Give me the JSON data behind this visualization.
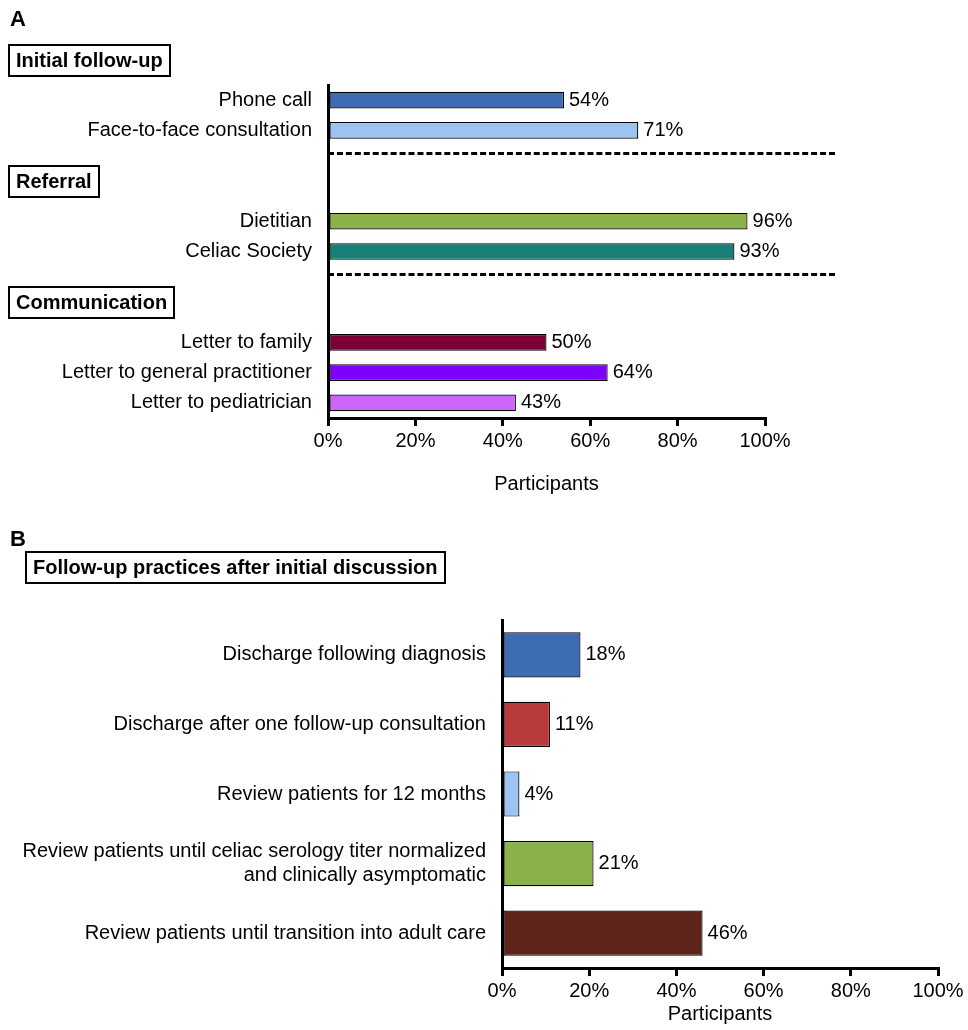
{
  "chart_data": [
    {
      "type": "bar",
      "orientation": "horizontal",
      "categories": [
        "Phone call",
        "Face-to-face consultation",
        null,
        null,
        "Dietitian",
        "Celiac Society",
        null,
        null,
        "Letter to family",
        "Letter to general practitioner",
        "Letter to pediatrician"
      ],
      "values": [
        54,
        71,
        null,
        null,
        96,
        93,
        null,
        null,
        50,
        64,
        43
      ],
      "colors": [
        "#3e6cb2",
        "#9dc3f0",
        "#ffffff",
        "#ffffff",
        "#8cb04a",
        "#198079",
        "#ffffff",
        "#ffffff",
        "#7c0036",
        "#8000ff",
        "#cc66ff"
      ],
      "value_labels": [
        "54%",
        "71%",
        null,
        null,
        "96%",
        "93%",
        null,
        null,
        "50%",
        "64%",
        "43%"
      ],
      "xlim": [
        0,
        100
      ],
      "xticks": [
        {
          "value": 0,
          "label": "0%"
        },
        {
          "value": 20,
          "label": "20%"
        },
        {
          "value": 40,
          "label": "40%"
        },
        {
          "value": 60,
          "label": "60%"
        },
        {
          "value": 80,
          "label": "80%"
        },
        {
          "value": 100,
          "label": "100%"
        }
      ],
      "xlabel": "Participants",
      "annotations": [
        "A",
        "Initial follow-up",
        "Referral",
        "Communication"
      ]
    },
    {
      "type": "bar",
      "orientation": "horizontal",
      "title": "Follow-up practices after initial discussion",
      "categories": [
        "Discharge following diagnosis",
        "Discharge after one follow-up consultation",
        "Review patients for 12 months",
        "Review patients until celiac serology titer normalized and clinically asymptomatic",
        "Review patients until transition into adult care"
      ],
      "values": [
        18,
        11,
        4,
        21,
        46
      ],
      "colors": [
        "#3e6cb2",
        "#b83b3b",
        "#9dc3f0",
        "#8cb04a",
        "#5e2419"
      ],
      "value_labels": [
        "18%",
        "11%",
        "4%",
        "21%",
        "46%"
      ],
      "xlim": [
        0,
        100
      ],
      "xticks": [
        {
          "value": 0,
          "label": "0%"
        },
        {
          "value": 20,
          "label": "20%"
        },
        {
          "value": 40,
          "label": "40%"
        },
        {
          "value": 60,
          "label": "60%"
        },
        {
          "value": 80,
          "label": "80%"
        },
        {
          "value": 100,
          "label": "100%"
        }
      ],
      "xlabel": "Participants",
      "annotations": [
        "B"
      ]
    }
  ]
}
